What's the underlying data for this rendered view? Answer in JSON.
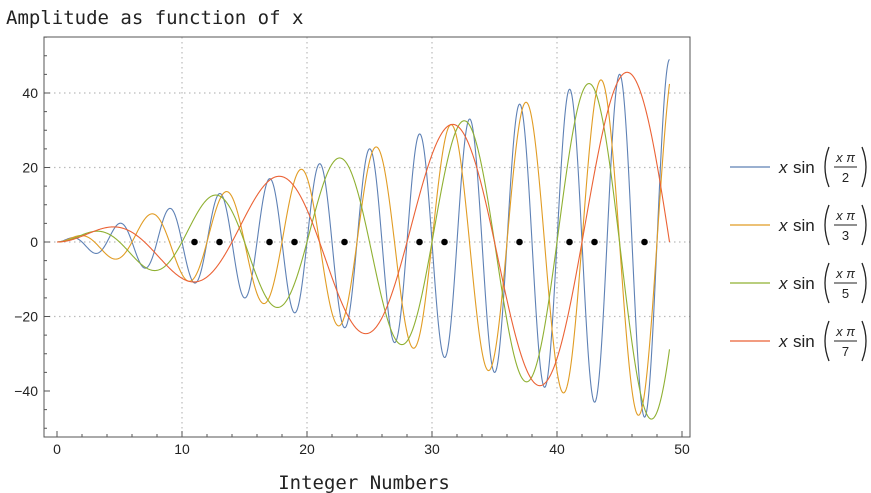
{
  "chart_data": {
    "type": "line",
    "title": "Amplitude as function of x",
    "xlabel": "Integer Numbers",
    "ylabel": "",
    "xlim": [
      0,
      50
    ],
    "ylim": [
      -52,
      52
    ],
    "x_ticks": [
      0,
      10,
      20,
      30,
      40,
      50
    ],
    "y_ticks": [
      -40,
      -20,
      0,
      20,
      40
    ],
    "x_tick_labels": [
      "0",
      "10",
      "20",
      "30",
      "40",
      "50"
    ],
    "y_tick_labels": [
      "−40",
      "−20",
      "0",
      "20",
      "40"
    ],
    "grid": {
      "vertical": [
        10,
        20,
        30,
        40
      ],
      "horizontal": [
        -20,
        0,
        20,
        40
      ],
      "style": "dotted"
    },
    "x_domain": [
      0,
      49
    ],
    "legend_position": "right",
    "series": [
      {
        "name": "x sin(x π / 2)",
        "formula": {
          "divisor": 2
        },
        "legend": {
          "var": "x",
          "sin": "sin",
          "frac_top": "x π",
          "frac_bottom": "2"
        },
        "color": "#5E81B5"
      },
      {
        "name": "x sin(x π / 3)",
        "formula": {
          "divisor": 3
        },
        "legend": {
          "var": "x",
          "sin": "sin",
          "frac_top": "x π",
          "frac_bottom": "3"
        },
        "color": "#E19C24"
      },
      {
        "name": "x sin(x π / 5)",
        "formula": {
          "divisor": 5
        },
        "legend": {
          "var": "x",
          "sin": "sin",
          "frac_top": "x π",
          "frac_bottom": "5"
        },
        "color": "#8FB032"
      },
      {
        "name": "x sin(x π / 7)",
        "formula": {
          "divisor": 7
        },
        "legend": {
          "var": "x",
          "sin": "sin",
          "frac_top": "x π",
          "frac_bottom": "7"
        },
        "color": "#EB6235"
      }
    ],
    "points": {
      "x": [
        11,
        13,
        17,
        19,
        23,
        29,
        31,
        37,
        41,
        43,
        47
      ],
      "y": [
        0,
        0,
        0,
        0,
        0,
        0,
        0,
        0,
        0,
        0,
        0
      ],
      "color": "#000000"
    }
  }
}
